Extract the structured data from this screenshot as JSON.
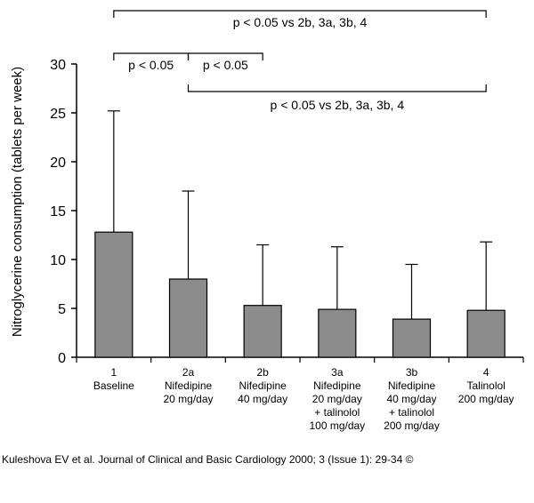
{
  "chart_data": {
    "type": "bar",
    "ylabel": "Nitroglycerine consumption (tablets per week)",
    "xlabel": "",
    "ylim": [
      0,
      30
    ],
    "yticks": [
      0,
      5,
      10,
      15,
      20,
      25,
      30
    ],
    "grid": false,
    "bar_color": "#8c8c8c",
    "categories": [
      {
        "id": "1",
        "lines": [
          "1",
          "Baseline"
        ]
      },
      {
        "id": "2a",
        "lines": [
          "2a",
          "Nifedipine",
          "20 mg/day"
        ]
      },
      {
        "id": "2b",
        "lines": [
          "2b",
          "Nifedipine",
          "40 mg/day"
        ]
      },
      {
        "id": "3a",
        "lines": [
          "3a",
          "Nifedipine",
          "20 mg/day",
          "+ talinolol",
          "100 mg/day"
        ]
      },
      {
        "id": "3b",
        "lines": [
          "3b",
          "Nifedipine",
          "40 mg/day",
          "+ talinolol",
          "200 mg/day"
        ]
      },
      {
        "id": "4",
        "lines": [
          "4",
          "Talinolol",
          "200 mg/day"
        ]
      }
    ],
    "values": [
      12.8,
      8.0,
      5.3,
      4.9,
      3.9,
      4.8
    ],
    "error_upper": [
      25.2,
      17.0,
      11.5,
      11.3,
      9.5,
      11.8
    ],
    "annotations": [
      {
        "text": "p < 0.05 vs 2b, 3a, 3b, 4",
        "from": 0,
        "to": 5,
        "opens": "down",
        "level": 2
      },
      {
        "text": "p < 0.05",
        "from": 0,
        "to": 1,
        "opens": "down",
        "level": 1
      },
      {
        "text": "p < 0.05",
        "from": 1,
        "to": 2,
        "opens": "down",
        "level": 1
      },
      {
        "text": "p < 0.05 vs 2b, 3a, 3b, 4",
        "from": 1,
        "to": 5,
        "opens": "up",
        "level": 0
      }
    ]
  },
  "footer": {
    "citation": "Kuleshova EV et al. Journal of Clinical and Basic Cardiology 2000; 3 (Issue 1): 29-34 ©"
  }
}
